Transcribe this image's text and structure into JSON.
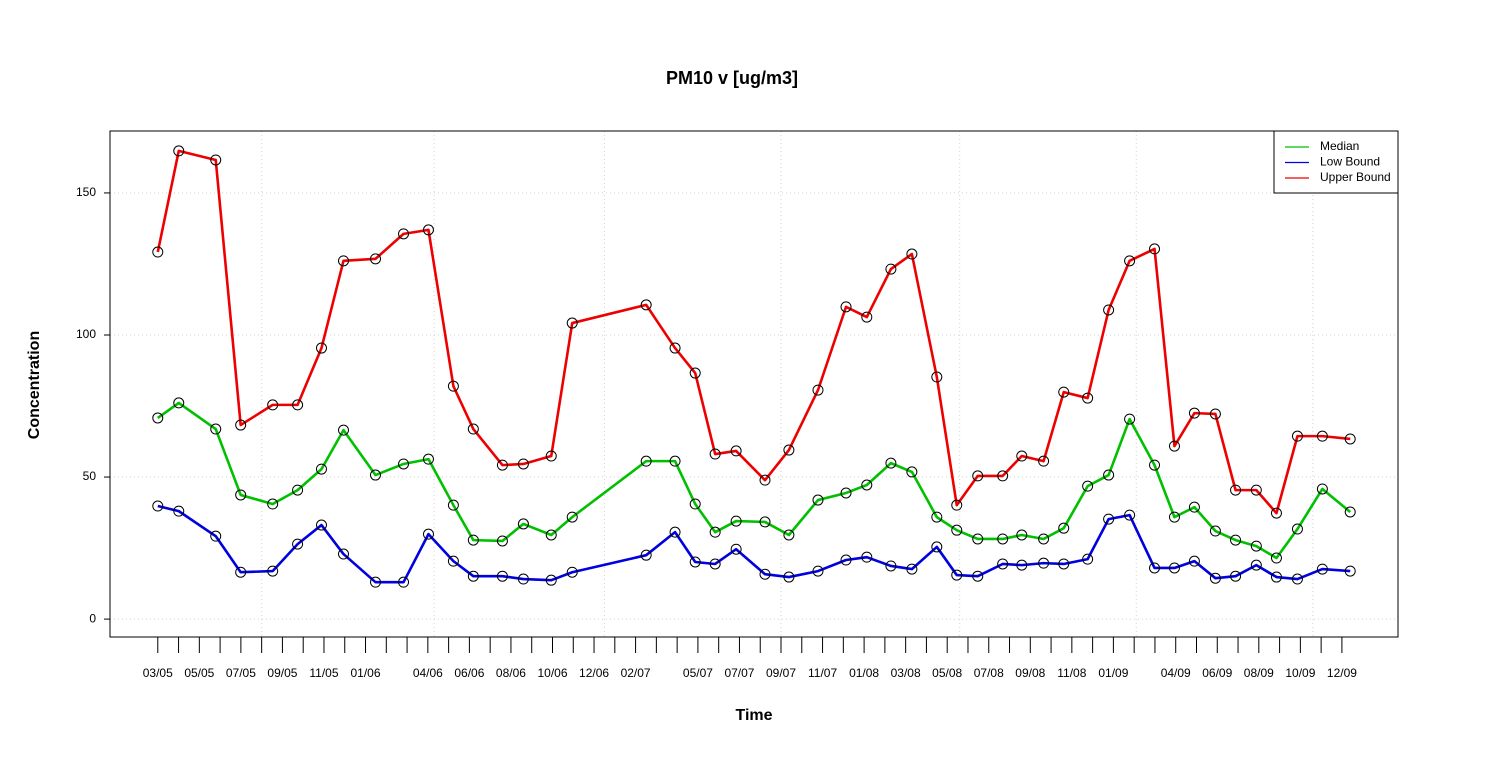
{
  "chart_data": {
    "type": "line",
    "title": "PM10 v [ug/m3]",
    "x_label": "Time",
    "y_label": "Concentration",
    "x": [
      0,
      1.01,
      2.79,
      3.99,
      5.53,
      6.73,
      7.88,
      8.94,
      10.48,
      11.83,
      13.03,
      14.23,
      15.19,
      16.59,
      17.6,
      18.94,
      19.95,
      23.51,
      24.9,
      25.87,
      26.83,
      27.84,
      29.23,
      30.38,
      31.78,
      33.13,
      34.13,
      35.29,
      36.3,
      37.5,
      38.46,
      39.47,
      40.67,
      41.59,
      42.64,
      43.61,
      44.76,
      45.77,
      46.78,
      47.98,
      48.94,
      49.9,
      50.91,
      51.88,
      52.88,
      53.85,
      54.86,
      56.06,
      57.4
    ],
    "series": [
      {
        "name": "Median",
        "color": "#00c000",
        "values": [
          70.8,
          76.1,
          66.9,
          43.7,
          40.5,
          45.4,
          52.8,
          66.5,
          50.7,
          54.6,
          56.3,
          40.1,
          27.8,
          27.5,
          33.5,
          29.6,
          35.9,
          55.6,
          55.6,
          40.5,
          30.6,
          34.5,
          34.2,
          29.6,
          41.9,
          44.4,
          47.2,
          54.9,
          51.8,
          35.9,
          31.3,
          28.2,
          28.2,
          29.6,
          28.2,
          32,
          46.8,
          50.7,
          70.4,
          54.2,
          35.9,
          39.4,
          31,
          27.8,
          25.7,
          21.5,
          31.7,
          45.8,
          37.7
        ]
      },
      {
        "name": "Low Bound",
        "color": "#0000e0",
        "values": [
          39.8,
          38,
          29.2,
          16.5,
          16.9,
          26.4,
          33.1,
          22.9,
          13,
          13,
          29.9,
          20.4,
          15.1,
          15.1,
          14.1,
          13.7,
          16.5,
          22.5,
          30.6,
          20.1,
          19.4,
          24.6,
          15.8,
          14.8,
          16.9,
          20.8,
          21.8,
          18.7,
          17.6,
          25.4,
          15.5,
          15.1,
          19.4,
          19,
          19.7,
          19.4,
          21.1,
          35.2,
          36.6,
          18,
          18,
          20.4,
          14.4,
          15.1,
          19,
          14.8,
          14.1,
          17.6,
          16.9
        ]
      },
      {
        "name": "Upper Bound",
        "color": "#ee0000",
        "values": [
          129.2,
          164.8,
          161.6,
          68.3,
          75.4,
          75.4,
          95.4,
          126.1,
          126.8,
          135.6,
          137,
          82,
          66.9,
          54.2,
          54.6,
          57.4,
          104.2,
          110.6,
          95.4,
          86.6,
          58.1,
          59.2,
          48.9,
          59.5,
          80.6,
          109.9,
          106.3,
          123.2,
          128.5,
          85.2,
          40.1,
          50.4,
          50.4,
          57.4,
          55.6,
          79.9,
          77.8,
          108.8,
          126.1,
          130.3,
          60.9,
          72.5,
          72.2,
          45.4,
          45.4,
          37.3,
          64.4,
          64.4,
          63.4
        ]
      }
    ],
    "xlim": [
      -2.3,
      59.7
    ],
    "ylim": [
      -6.3,
      171.8
    ],
    "yticks": [
      0,
      50,
      100,
      150
    ],
    "xticks": [
      {
        "value": 0,
        "label": "03/05"
      },
      {
        "value": 2,
        "label": "05/05"
      },
      {
        "value": 4,
        "label": "07/05"
      },
      {
        "value": 6,
        "label": "09/05"
      },
      {
        "value": 8,
        "label": "11/05"
      },
      {
        "value": 10,
        "label": "01/06"
      },
      {
        "value": 13,
        "label": "04/06"
      },
      {
        "value": 15,
        "label": "06/06"
      },
      {
        "value": 17,
        "label": "08/06"
      },
      {
        "value": 19,
        "label": "10/06"
      },
      {
        "value": 21,
        "label": "12/06"
      },
      {
        "value": 23,
        "label": "02/07"
      },
      {
        "value": 26,
        "label": "05/07"
      },
      {
        "value": 28,
        "label": "07/07"
      },
      {
        "value": 30,
        "label": "09/07"
      },
      {
        "value": 32,
        "label": "11/07"
      },
      {
        "value": 34,
        "label": "01/08"
      },
      {
        "value": 36,
        "label": "03/08"
      },
      {
        "value": 38,
        "label": "05/08"
      },
      {
        "value": 40,
        "label": "07/08"
      },
      {
        "value": 42,
        "label": "09/08"
      },
      {
        "value": 44,
        "label": "11/08"
      },
      {
        "value": 46,
        "label": "01/09"
      },
      {
        "value": 49,
        "label": "04/09"
      },
      {
        "value": 51,
        "label": "06/09"
      },
      {
        "value": 53,
        "label": "08/09"
      },
      {
        "value": 55,
        "label": "10/09"
      },
      {
        "value": 57,
        "label": "12/09"
      }
    ],
    "xminorticks": [
      1,
      3,
      5,
      7,
      9,
      11,
      12,
      14,
      16,
      18,
      20,
      22,
      24,
      25,
      27,
      29,
      31,
      33,
      35,
      37,
      39,
      41,
      43,
      45,
      47,
      48,
      50,
      52,
      54,
      56
    ],
    "xgrid": [
      5,
      13.3,
      21.5,
      30,
      38.6,
      47.1,
      55.6
    ],
    "grid": true,
    "legend": "top-right",
    "marker_color": "#000000"
  }
}
